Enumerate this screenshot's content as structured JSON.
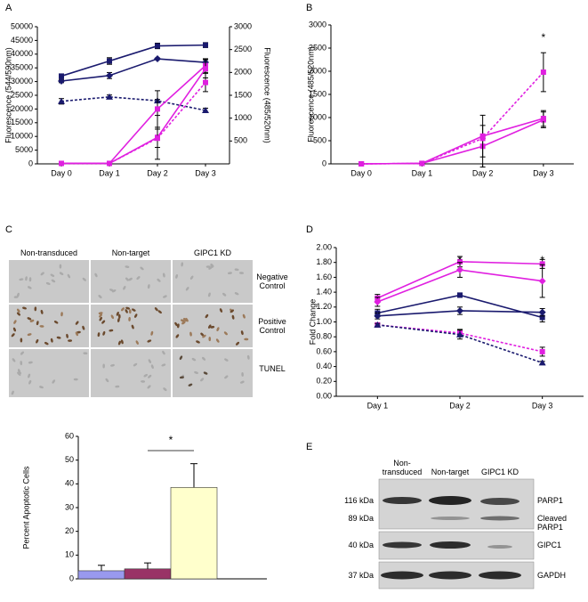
{
  "chart_data": [
    {
      "panel": "A",
      "type": "line",
      "categories": [
        "Day 0",
        "Day 1",
        "Day 2",
        "Day 3"
      ],
      "y_label": "Fluorescence (544/590nm)",
      "y2_label": "Fluorescence (485/520nm)",
      "ylim": [
        0,
        50000
      ],
      "yticks": [
        0,
        5000,
        10000,
        15000,
        20000,
        25000,
        30000,
        35000,
        40000,
        45000,
        50000
      ],
      "y2lim": [
        0,
        3000
      ],
      "y2ticks": [
        500,
        1000,
        1500,
        2000,
        2500,
        3000
      ],
      "series": [
        {
          "color": "#1a1a6e",
          "marker": "square",
          "dash": false,
          "values": [
            32000,
            37500,
            43000,
            43300
          ],
          "errors": [
            800,
            1200,
            1000,
            900
          ]
        },
        {
          "color": "#1a1a6e",
          "marker": "diamond",
          "dash": false,
          "values": [
            30200,
            32200,
            38300,
            37000
          ],
          "errors": [
            600,
            1100,
            300,
            1000
          ]
        },
        {
          "color": "#1a1a6e",
          "marker": "triangle",
          "dash": true,
          "values": [
            22800,
            24400,
            23000,
            19500
          ],
          "errors": [
            1000,
            700,
            500,
            800
          ]
        },
        {
          "color": "#e020e0",
          "marker": "square",
          "dash": false,
          "axis": "y2",
          "values": [
            10,
            10,
            1200,
            2150
          ],
          "errors": [
            0,
            0,
            400,
            150
          ]
        },
        {
          "color": "#e020e0",
          "marker": "square",
          "dash": false,
          "axis": "y2",
          "values": [
            10,
            10,
            580,
            2080
          ],
          "errors": [
            0,
            0,
            480,
            200
          ]
        },
        {
          "color": "#e020e0",
          "marker": "square",
          "dash": true,
          "axis": "y2",
          "values": [
            10,
            10,
            560,
            1780
          ],
          "errors": [
            0,
            0,
            200,
            200
          ]
        }
      ]
    },
    {
      "panel": "B",
      "type": "line",
      "categories": [
        "Day 0",
        "Day 1",
        "Day 2",
        "Day 3"
      ],
      "y_label": "Fluorescence (485/520nm)",
      "ylim": [
        0,
        3000
      ],
      "yticks": [
        0,
        500,
        1000,
        1500,
        2000,
        2500,
        3000
      ],
      "annotations": [
        "*"
      ],
      "series": [
        {
          "color": "#e020e0",
          "marker": "square",
          "dash": false,
          "values": [
            0,
            10,
            380,
            950
          ],
          "errors": [
            0,
            0,
            450,
            170
          ]
        },
        {
          "color": "#e020e0",
          "marker": "square",
          "dash": false,
          "values": [
            0,
            10,
            600,
            980
          ],
          "errors": [
            0,
            0,
            450,
            170
          ]
        },
        {
          "color": "#e020e0",
          "marker": "square",
          "dash": true,
          "values": [
            0,
            10,
            550,
            1980
          ],
          "errors": [
            0,
            0,
            0,
            420
          ]
        }
      ]
    },
    {
      "panel": "D",
      "type": "line",
      "categories": [
        "Day 1",
        "Day 2",
        "Day 3"
      ],
      "y_label": "Fold Change",
      "ylim": [
        0,
        2
      ],
      "yticks": [
        {
          "value": 0,
          "label": "0.00"
        },
        {
          "value": 0.2,
          "label": "0.20"
        },
        {
          "value": 0.4,
          "label": "0.40"
        },
        {
          "value": 0.6,
          "label": "0.60"
        },
        {
          "value": 0.8,
          "label": "0.80"
        },
        {
          "value": 1,
          "label": "1.00"
        },
        {
          "value": 1.2,
          "label": "1.20"
        },
        {
          "value": 1.4,
          "label": "1.40"
        },
        {
          "value": 1.6,
          "label": "1.60"
        },
        {
          "value": 1.8,
          "label": "1.80"
        },
        {
          "value": 2,
          "label": "2.00"
        }
      ],
      "annotations": [
        "*",
        "*"
      ],
      "series": [
        {
          "color": "#e020e0",
          "marker": "square",
          "dash": false,
          "values": [
            1.32,
            1.81,
            1.78
          ],
          "errors": [
            0.05,
            0.07,
            0.06
          ]
        },
        {
          "color": "#e020e0",
          "marker": "diamond",
          "dash": false,
          "values": [
            1.27,
            1.7,
            1.55
          ],
          "errors": [
            0.06,
            0.1,
            0.22
          ]
        },
        {
          "color": "#1a1a6e",
          "marker": "square",
          "dash": false,
          "values": [
            1.12,
            1.36,
            1.06
          ],
          "errors": [
            0.05,
            0.03,
            0.06
          ]
        },
        {
          "color": "#1a1a6e",
          "marker": "diamond",
          "dash": false,
          "values": [
            1.08,
            1.15,
            1.13
          ],
          "errors": [
            0.04,
            0.05,
            0.05
          ]
        },
        {
          "color": "#e020e0",
          "marker": "square",
          "dash": true,
          "values": [
            0.96,
            0.85,
            0.6
          ],
          "errors": [
            0.02,
            0.05,
            0.06
          ]
        },
        {
          "color": "#1a1a6e",
          "marker": "triangle",
          "dash": true,
          "values": [
            0.96,
            0.83,
            0.45
          ],
          "errors": [
            0.02,
            0.06,
            0.02
          ]
        }
      ]
    },
    {
      "type": "bar",
      "categories": [
        null,
        null,
        null
      ],
      "y_label": "Percent Apoptotic Cells",
      "ylim": [
        0,
        60
      ],
      "yticks": [
        0,
        10,
        20,
        30,
        40,
        50,
        60
      ],
      "values": [
        3.4,
        4.2,
        38.5
      ],
      "errors": [
        2.3,
        2.5,
        10
      ],
      "colors": [
        "#9999ee",
        "#993366",
        "#ffffcc"
      ],
      "annotations": [
        "*"
      ]
    }
  ],
  "micrographs": {
    "panel": "C",
    "columns": [
      "Non-transduced",
      "Non-target",
      "GIPC1 KD"
    ],
    "rows": [
      "Negative Control",
      "Positive Control",
      "TUNEL"
    ]
  },
  "blot": {
    "panel": "E",
    "lanes": [
      "Non-transduced",
      "Non-target",
      "GIPC1 KD"
    ],
    "markers": [
      "116 kDa",
      "89 kDa",
      "40 kDa",
      "37 kDa"
    ],
    "bands": [
      "PARP1",
      "Cleaved PARP1",
      "GIPC1",
      "GAPDH"
    ]
  }
}
